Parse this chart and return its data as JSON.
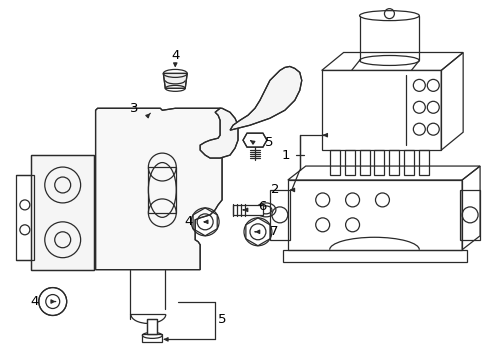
{
  "bg": "#ffffff",
  "lc": "#2a2a2a",
  "lw": 0.9,
  "fig_w": 4.89,
  "fig_h": 3.6,
  "dpi": 100
}
